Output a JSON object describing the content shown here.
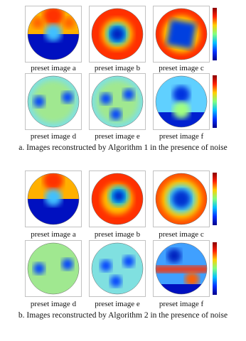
{
  "panels": [
    {
      "images": [
        {
          "label": "preset image a"
        },
        {
          "label": "preset image b"
        },
        {
          "label": "preset image c"
        },
        {
          "label": "preset image d"
        },
        {
          "label": "preset image e"
        },
        {
          "label": "preset image f"
        }
      ],
      "caption": "a. Images reconstructed by Algorithm 1 in the presence of noise"
    },
    {
      "images": [
        {
          "label": "preset image a"
        },
        {
          "label": "preset image b"
        },
        {
          "label": "preset image c"
        },
        {
          "label": "preset image d"
        },
        {
          "label": "preset image e"
        },
        {
          "label": "preset image f"
        }
      ],
      "caption": "b. Images reconstructed by Algorithm 2 in the presence of noise"
    }
  ]
}
